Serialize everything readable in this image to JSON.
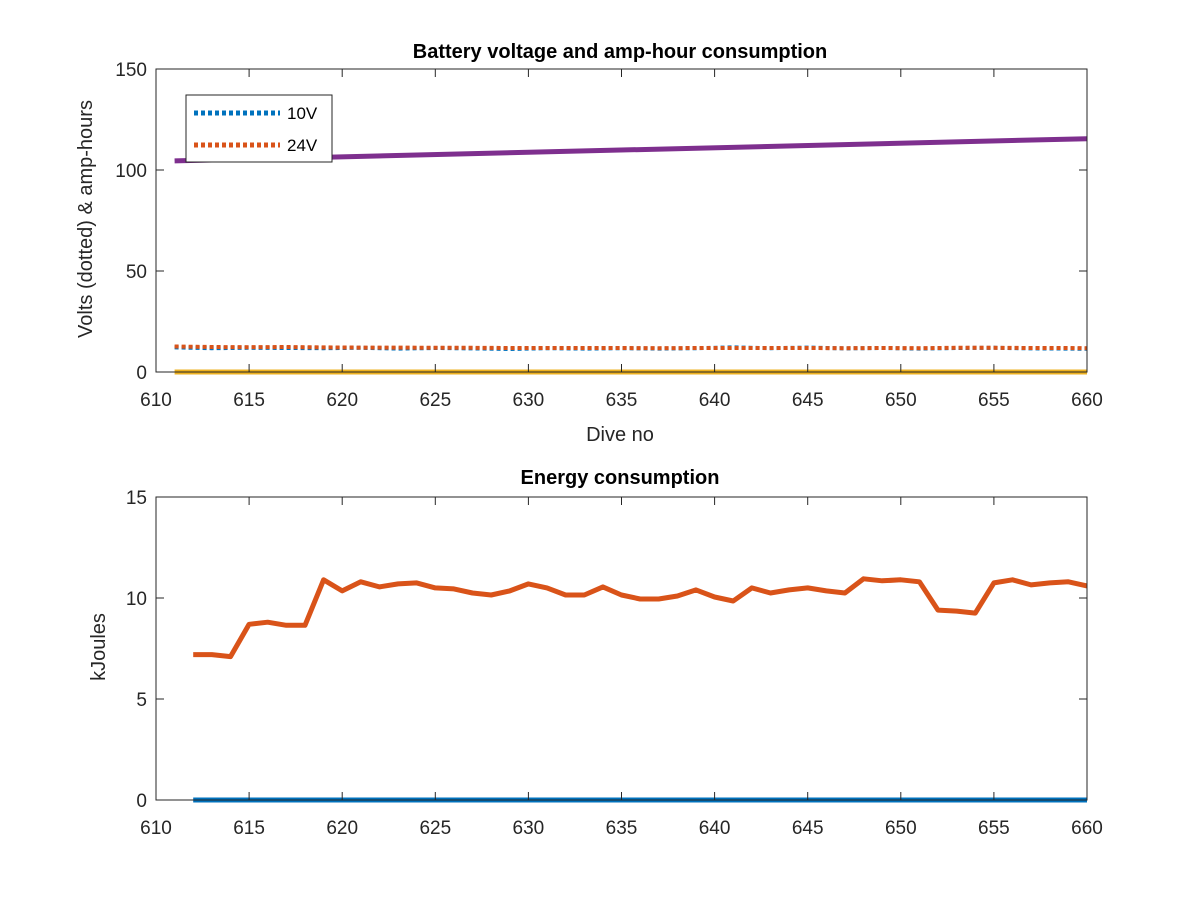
{
  "chart_data": [
    {
      "type": "line",
      "title": "Battery voltage and amp-hour consumption",
      "xlabel": "Dive no",
      "ylabel": "Volts (dotted) & amp-hours",
      "xlim": [
        610,
        660
      ],
      "ylim": [
        0,
        150
      ],
      "xticks": [
        610,
        615,
        620,
        625,
        630,
        635,
        640,
        645,
        650,
        655,
        660
      ],
      "yticks": [
        0,
        50,
        100,
        150
      ],
      "grid": false,
      "legend": "top-left",
      "series": [
        {
          "name": "10V",
          "style": "dotted",
          "color": "#0072BD",
          "x": [
            611,
            613,
            615,
            617,
            619,
            621,
            623,
            625,
            627,
            629,
            631,
            633,
            635,
            637,
            639,
            641,
            643,
            645,
            647,
            649,
            651,
            653,
            655,
            657,
            659,
            660
          ],
          "y": [
            12.2,
            11.8,
            12.0,
            11.9,
            11.8,
            12.0,
            11.6,
            11.9,
            11.7,
            11.4,
            11.8,
            11.6,
            11.8,
            11.6,
            11.8,
            12.2,
            11.8,
            12.1,
            11.7,
            11.9,
            11.6,
            11.9,
            12.0,
            11.7,
            11.6,
            11.5
          ]
        },
        {
          "name": "24V",
          "style": "dotted",
          "color": "#D95319",
          "x": [
            611,
            613,
            615,
            617,
            619,
            621,
            623,
            625,
            627,
            629,
            631,
            633,
            635,
            637,
            639,
            641,
            643,
            645,
            647,
            649,
            651,
            653,
            655,
            657,
            659,
            660
          ],
          "y": [
            12.6,
            12.4,
            12.3,
            12.4,
            12.2,
            12.1,
            12.1,
            12.0,
            12.0,
            11.9,
            11.9,
            11.9,
            11.9,
            11.8,
            11.9,
            11.9,
            11.9,
            11.9,
            11.8,
            11.9,
            11.8,
            12.0,
            12.0,
            11.9,
            11.9,
            11.8
          ]
        },
        {
          "style": "solid",
          "color": "#EDB120",
          "x": [
            611,
            660
          ],
          "y": [
            0,
            0
          ]
        },
        {
          "style": "solid",
          "color": "#7E2F8E",
          "x": [
            611,
            660
          ],
          "y": [
            104.5,
            115.5
          ]
        }
      ]
    },
    {
      "type": "line",
      "title": "Energy consumption",
      "xlabel": "",
      "ylabel": "kJoules",
      "xlim": [
        610,
        660
      ],
      "ylim": [
        0,
        15
      ],
      "xticks": [
        610,
        615,
        620,
        625,
        630,
        635,
        640,
        645,
        650,
        655,
        660
      ],
      "yticks": [
        0,
        5,
        10,
        15
      ],
      "grid": false,
      "series": [
        {
          "style": "solid",
          "color": "#0072BD",
          "x": [
            612,
            660
          ],
          "y": [
            0,
            0
          ]
        },
        {
          "style": "solid",
          "color": "#D95319",
          "x": [
            612,
            613,
            614,
            615,
            616,
            617,
            618,
            619,
            620,
            621,
            622,
            623,
            624,
            625,
            626,
            627,
            628,
            629,
            630,
            631,
            632,
            633,
            634,
            635,
            636,
            637,
            638,
            639,
            640,
            641,
            642,
            643,
            644,
            645,
            646,
            647,
            648,
            649,
            650,
            651,
            652,
            653,
            654,
            655,
            656,
            657,
            658,
            659,
            660
          ],
          "y": [
            7.2,
            7.2,
            7.1,
            8.7,
            8.8,
            8.65,
            8.65,
            10.9,
            10.35,
            10.8,
            10.55,
            10.7,
            10.75,
            10.5,
            10.45,
            10.25,
            10.15,
            10.35,
            10.7,
            10.5,
            10.15,
            10.15,
            10.55,
            10.15,
            9.95,
            9.95,
            10.1,
            10.4,
            10.05,
            9.85,
            10.5,
            10.25,
            10.4,
            10.5,
            10.35,
            10.25,
            10.95,
            10.85,
            10.9,
            10.8,
            9.4,
            9.35,
            9.25,
            10.75,
            10.9,
            10.65,
            10.75,
            10.8,
            10.6
          ]
        }
      ]
    }
  ]
}
